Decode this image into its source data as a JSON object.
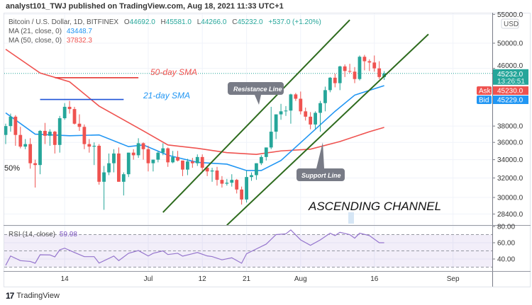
{
  "header": {
    "published": "analyst101_TWJ published on TradingView.com, Aug 18, 2021 11:33 UTC+1"
  },
  "legend": {
    "symbol": "Bitcoin / U.S. Dollar, 1D, BITFINEX",
    "o_label": "O",
    "o": "44692.0",
    "h_label": "H",
    "h": "45581.0",
    "l_label": "L",
    "l": "44266.0",
    "c_label": "C",
    "c": "45232.0",
    "change": "+537.0 (+1.20%)",
    "ma21_label": "MA (21, close, 0)",
    "ma21_value": "43448.7",
    "ma50_label": "MA (50, close, 0)",
    "ma50_value": "37832.3",
    "rsi_label": "RSI (14, close)",
    "rsi_value": "59.98"
  },
  "footer": {
    "brand": "TradingView",
    "logo_text": "17"
  },
  "colors": {
    "up": "#26a69a",
    "down": "#ef5350",
    "ma21": "#2196f3",
    "ma50": "#ef5350",
    "rsi": "#9575cd",
    "trendline": "#2e6b1e",
    "bid": "#2196f3",
    "ask": "#ef5350"
  },
  "chart_data": {
    "type": "candlestick",
    "y_scale": "log",
    "currency": "USD",
    "grid": true,
    "price_ticks": [
      "55000.0",
      "50000.0",
      "46000.0",
      "38000.0",
      "36000.0",
      "34000.0",
      "32000.0",
      "30000.0",
      "28400.0"
    ],
    "price_tick_values": [
      55000,
      50000,
      46000,
      38000,
      36000,
      34000,
      32000,
      30000,
      28400
    ],
    "x_ticks": [
      {
        "label": "14",
        "date": "06-14"
      },
      {
        "label": "Jul",
        "date": "07-01"
      },
      {
        "label": "12",
        "date": "07-12"
      },
      {
        "label": "21",
        "date": "07-21"
      },
      {
        "label": "Aug",
        "date": "08-01"
      },
      {
        "label": "16",
        "date": "08-16"
      },
      {
        "label": "Sep",
        "date": "09-01"
      }
    ],
    "last_price": {
      "value": "45232.0",
      "countdown": "13:26:51"
    },
    "ask": {
      "label": "Ask",
      "value": "45230.0"
    },
    "bid": {
      "label": "Bid",
      "value": "45229.0"
    },
    "candles": [
      [
        "06-02",
        36900,
        38300,
        35800,
        38000
      ],
      [
        "06-03",
        38000,
        39600,
        37300,
        39200
      ],
      [
        "06-04",
        39200,
        39400,
        35600,
        36900
      ],
      [
        "06-05",
        36900,
        37900,
        35300,
        35500
      ],
      [
        "06-06",
        35500,
        36400,
        35200,
        35800
      ],
      [
        "06-07",
        35800,
        36500,
        33000,
        33600
      ],
      [
        "06-08",
        33600,
        34000,
        31000,
        33400
      ],
      [
        "06-09",
        33400,
        37500,
        32400,
        37400
      ],
      [
        "06-10",
        37400,
        38400,
        35800,
        36800
      ],
      [
        "06-11",
        36800,
        37600,
        35600,
        37300
      ],
      [
        "06-12",
        37300,
        37400,
        34700,
        35700
      ],
      [
        "06-13",
        35700,
        39300,
        34800,
        39000
      ],
      [
        "06-14",
        39000,
        41000,
        38800,
        40500
      ],
      [
        "06-15",
        40500,
        41300,
        39600,
        40200
      ],
      [
        "06-16",
        40200,
        40500,
        38200,
        38300
      ],
      [
        "06-17",
        38300,
        39500,
        37400,
        37900
      ],
      [
        "06-18",
        37900,
        38200,
        35200,
        35800
      ],
      [
        "06-19",
        35800,
        36400,
        34800,
        35500
      ],
      [
        "06-20",
        35500,
        36000,
        33400,
        35600
      ],
      [
        "06-21",
        35600,
        35800,
        31300,
        31600
      ],
      [
        "06-22",
        31600,
        33300,
        28800,
        32600
      ],
      [
        "06-23",
        32600,
        34700,
        32300,
        33600
      ],
      [
        "06-24",
        33600,
        35200,
        32600,
        34700
      ],
      [
        "06-25",
        34700,
        35400,
        31600,
        31600
      ],
      [
        "06-26",
        31600,
        32600,
        30200,
        32400
      ],
      [
        "06-27",
        32400,
        34800,
        32100,
        34800
      ],
      [
        "06-28",
        34800,
        35200,
        34000,
        34500
      ],
      [
        "06-29",
        34500,
        36500,
        34200,
        35900
      ],
      [
        "06-30",
        35900,
        36000,
        34000,
        35200
      ],
      [
        "07-01",
        35200,
        35600,
        32700,
        33600
      ],
      [
        "07-02",
        33600,
        34000,
        32700,
        34000
      ],
      [
        "07-03",
        34000,
        35000,
        33700,
        34800
      ],
      [
        "07-04",
        34800,
        35900,
        34500,
        35300
      ],
      [
        "07-05",
        35300,
        35400,
        33200,
        33700
      ],
      [
        "07-06",
        33700,
        35000,
        33600,
        34300
      ],
      [
        "07-07",
        34300,
        35000,
        33800,
        33900
      ],
      [
        "07-08",
        33900,
        33900,
        32200,
        32900
      ],
      [
        "07-09",
        32900,
        34100,
        32300,
        33800
      ],
      [
        "07-10",
        33800,
        34200,
        33100,
        33600
      ],
      [
        "07-11",
        33600,
        34600,
        33300,
        34300
      ],
      [
        "07-12",
        34300,
        34600,
        32700,
        33100
      ],
      [
        "07-13",
        33100,
        33300,
        32200,
        32700
      ],
      [
        "07-14",
        32700,
        33100,
        31600,
        32800
      ],
      [
        "07-15",
        32800,
        33200,
        31200,
        31800
      ],
      [
        "07-16",
        31800,
        32200,
        31000,
        31400
      ],
      [
        "07-17",
        31400,
        31900,
        31200,
        31500
      ],
      [
        "07-18",
        31500,
        32400,
        31100,
        31800
      ],
      [
        "07-19",
        31800,
        31900,
        30400,
        30800
      ],
      [
        "07-20",
        30800,
        31100,
        29300,
        29800
      ],
      [
        "07-21",
        29800,
        32800,
        29500,
        32100
      ],
      [
        "07-22",
        32100,
        32600,
        31700,
        32300
      ],
      [
        "07-23",
        32300,
        33600,
        31800,
        33600
      ],
      [
        "07-24",
        33600,
        34500,
        33400,
        34300
      ],
      [
        "07-25",
        34300,
        35400,
        33900,
        35400
      ],
      [
        "07-26",
        35400,
        40500,
        35200,
        37300
      ],
      [
        "07-27",
        37300,
        39500,
        36400,
        39500
      ],
      [
        "07-28",
        39500,
        40900,
        38800,
        39900
      ],
      [
        "07-29",
        39900,
        40600,
        39300,
        40000
      ],
      [
        "07-30",
        40000,
        42300,
        38300,
        42200
      ],
      [
        "07-31",
        42200,
        42400,
        41300,
        41600
      ],
      [
        "08-01",
        41600,
        42600,
        39500,
        39900
      ],
      [
        "08-02",
        39900,
        40400,
        38700,
        39200
      ],
      [
        "08-03",
        39200,
        39800,
        37600,
        38200
      ],
      [
        "08-04",
        38200,
        39900,
        37600,
        39700
      ],
      [
        "08-05",
        39700,
        41300,
        37300,
        41000
      ],
      [
        "08-06",
        41000,
        43300,
        39900,
        42800
      ],
      [
        "08-07",
        42800,
        44700,
        42500,
        44600
      ],
      [
        "08-08",
        44600,
        45200,
        43200,
        43800
      ],
      [
        "08-09",
        43800,
        46400,
        42800,
        46300
      ],
      [
        "08-10",
        46300,
        46600,
        44700,
        45600
      ],
      [
        "08-11",
        45600,
        46700,
        45300,
        45500
      ],
      [
        "08-12",
        45500,
        46200,
        43800,
        44400
      ],
      [
        "08-13",
        44400,
        48000,
        44200,
        47800
      ],
      [
        "08-14",
        47800,
        48100,
        45700,
        47100
      ],
      [
        "08-15",
        47100,
        47400,
        45600,
        46900
      ],
      [
        "08-16",
        46900,
        48000,
        45500,
        46000
      ],
      [
        "08-17",
        46000,
        47100,
        44400,
        44700
      ],
      [
        "08-18",
        44692,
        45581,
        44266,
        45232
      ]
    ],
    "ma21": [
      [
        "06-02",
        39700
      ],
      [
        "06-08",
        37000
      ],
      [
        "06-15",
        36800
      ],
      [
        "06-21",
        36900
      ],
      [
        "06-27",
        35500
      ],
      [
        "06-30",
        35700
      ],
      [
        "07-05",
        34500
      ],
      [
        "07-11",
        33700
      ],
      [
        "07-17",
        33500
      ],
      [
        "07-21",
        32800
      ],
      [
        "07-24",
        32800
      ],
      [
        "07-28",
        33900
      ],
      [
        "08-02",
        36500
      ],
      [
        "08-08",
        39900
      ],
      [
        "08-12",
        42100
      ],
      [
        "08-18",
        43448.7
      ]
    ],
    "ma50": [
      [
        "06-02",
        49000
      ],
      [
        "06-09",
        45300
      ],
      [
        "06-15",
        44000
      ],
      [
        "06-21",
        40600
      ],
      [
        "06-30",
        37400
      ],
      [
        "07-05",
        35700
      ],
      [
        "07-11",
        35300
      ],
      [
        "07-17",
        34800
      ],
      [
        "07-23",
        34600
      ],
      [
        "07-28",
        35000
      ],
      [
        "08-03",
        35200
      ],
      [
        "08-09",
        36100
      ],
      [
        "08-15",
        37300
      ],
      [
        "08-18",
        37832.3
      ]
    ],
    "rsi": {
      "levels": [
        70,
        50,
        30
      ],
      "ticks": [
        "80.00",
        "60.00",
        "40.00"
      ],
      "tick_values": [
        80,
        60,
        40
      ],
      "values": [
        [
          "06-02",
          32.2
        ],
        [
          "06-03",
          43.7
        ],
        [
          "06-05",
          38
        ],
        [
          "06-07",
          37
        ],
        [
          "06-08",
          34.8
        ],
        [
          "06-09",
          45.2
        ],
        [
          "06-11",
          45
        ],
        [
          "06-12",
          42.6
        ],
        [
          "06-13",
          51.3
        ],
        [
          "06-14",
          53.3
        ],
        [
          "06-16",
          48
        ],
        [
          "06-18",
          42.9
        ],
        [
          "06-20",
          42.9
        ],
        [
          "06-21",
          35
        ],
        [
          "06-24",
          43.6
        ],
        [
          "06-25",
          38
        ],
        [
          "06-27",
          47
        ],
        [
          "06-29",
          50.4
        ],
        [
          "07-01",
          43.7
        ],
        [
          "07-02",
          47
        ],
        [
          "07-04",
          50
        ],
        [
          "07-05",
          45.5
        ],
        [
          "07-07",
          47
        ],
        [
          "07-08",
          43.5
        ],
        [
          "07-10",
          46.5
        ],
        [
          "07-11",
          48
        ],
        [
          "07-13",
          43.8
        ],
        [
          "07-14",
          43
        ],
        [
          "07-16",
          39
        ],
        [
          "07-18",
          41.5
        ],
        [
          "07-20",
          34.8
        ],
        [
          "07-21",
          46.5
        ],
        [
          "07-23",
          52.4
        ],
        [
          "07-25",
          58.3
        ],
        [
          "07-27",
          70
        ],
        [
          "07-29",
          70.9
        ],
        [
          "07-30",
          75.7
        ],
        [
          "08-01",
          63.5
        ],
        [
          "08-03",
          56.8
        ],
        [
          "08-05",
          63.5
        ],
        [
          "08-07",
          71.7
        ],
        [
          "08-08",
          68.8
        ],
        [
          "08-09",
          72.8
        ],
        [
          "08-11",
          70
        ],
        [
          "08-12",
          65.6
        ],
        [
          "08-13",
          71.7
        ],
        [
          "08-15",
          68.8
        ],
        [
          "08-17",
          60
        ],
        [
          "08-18",
          59.98
        ]
      ]
    },
    "drawings": {
      "channel_upper": [
        [
          "07-04",
          28560
        ],
        [
          "08-11",
          54000
        ]
      ],
      "channel_lower": [
        [
          "07-17",
          27370
        ],
        [
          "08-27",
          51500
        ]
      ],
      "hline_red": [
        [
          "06-12",
          44600
        ],
        [
          "06-29",
          44600
        ]
      ],
      "hline_blue": [
        [
          "06-09",
          41500
        ],
        [
          "06-26",
          41500
        ]
      ],
      "hline_blue_short": [
        [
          "07-21",
          43700
        ],
        [
          "07-26",
          43700
        ]
      ]
    },
    "annotations": {
      "sma50_label": "50-day SMA",
      "sma21_label": "21-day SMA",
      "resistance_label": "Resistance Line",
      "support_label": "Support Line",
      "channel_label": "ASCENDING CHANNEL",
      "fib_label": "50%"
    }
  }
}
